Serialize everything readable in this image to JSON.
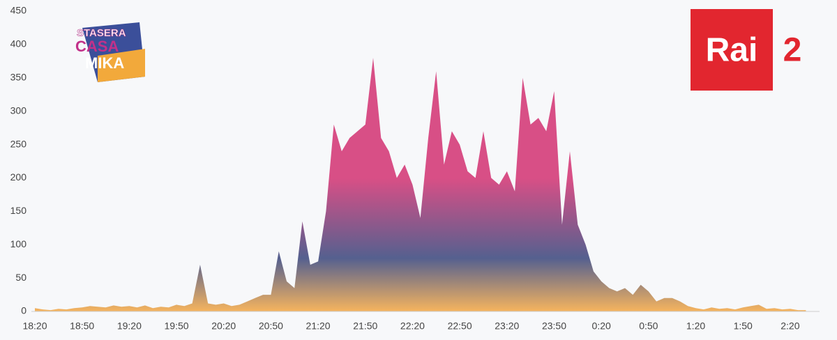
{
  "chart_data": {
    "type": "area",
    "categories": [
      "18:20",
      null,
      null,
      null,
      null,
      null,
      "18:50",
      null,
      null,
      null,
      null,
      null,
      "19:20",
      null,
      null,
      null,
      null,
      null,
      "19:50",
      null,
      null,
      null,
      null,
      null,
      "20:20",
      null,
      null,
      null,
      null,
      null,
      "20:50",
      null,
      null,
      null,
      null,
      null,
      "21:20",
      null,
      null,
      null,
      null,
      null,
      "21:50",
      null,
      null,
      null,
      null,
      null,
      "22:20",
      null,
      null,
      null,
      null,
      null,
      "22:50",
      null,
      null,
      null,
      null,
      null,
      "23:20",
      null,
      null,
      null,
      null,
      null,
      "23:50",
      null,
      null,
      null,
      null,
      null,
      "0:20",
      null,
      null,
      null,
      null,
      null,
      "0:50",
      null,
      null,
      null,
      null,
      null,
      "1:20",
      null,
      null,
      null,
      null,
      null,
      "1:50",
      null,
      null,
      null,
      null,
      null,
      "2:20",
      null,
      null
    ],
    "values": [
      5,
      3,
      2,
      4,
      3,
      5,
      6,
      8,
      7,
      6,
      9,
      7,
      8,
      6,
      9,
      5,
      7,
      6,
      10,
      8,
      12,
      70,
      12,
      10,
      12,
      8,
      10,
      15,
      20,
      25,
      25,
      90,
      45,
      35,
      135,
      70,
      75,
      150,
      280,
      240,
      260,
      270,
      280,
      380,
      260,
      240,
      200,
      220,
      190,
      140,
      260,
      360,
      220,
      270,
      250,
      210,
      200,
      270,
      200,
      190,
      210,
      180,
      350,
      280,
      290,
      270,
      330,
      130,
      240,
      130,
      100,
      60,
      45,
      35,
      30,
      35,
      25,
      40,
      30,
      15,
      20,
      20,
      15,
      8,
      5,
      3,
      6,
      4,
      5,
      3,
      6,
      8,
      10,
      4,
      5,
      3,
      4,
      2,
      2
    ],
    "colors": [
      "#d84f86",
      "#55608f",
      "#f6b45e"
    ],
    "ylim": [
      0,
      450
    ],
    "yticks": [
      0,
      50,
      100,
      150,
      200,
      250,
      300,
      350,
      400,
      450
    ],
    "grid": false,
    "channel_logo": {
      "text": "Rai",
      "number": "2",
      "color": "#e2262f"
    },
    "show_logo": [
      "STASERA",
      "CASA",
      "MIKA"
    ]
  }
}
